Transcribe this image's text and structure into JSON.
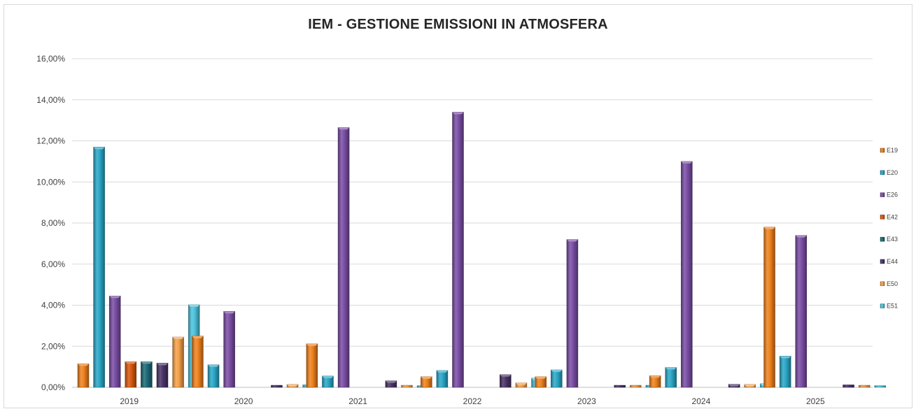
{
  "chart_data": {
    "type": "bar",
    "title": "IEM - GESTIONE EMISSIONI IN ATMOSFERA",
    "xlabel": "",
    "ylabel": "",
    "ylim": [
      0,
      16
    ],
    "y_ticks": [
      "0,00%",
      "2,00%",
      "4,00%",
      "6,00%",
      "8,00%",
      "10,00%",
      "12,00%",
      "14,00%",
      "16,00%"
    ],
    "y_tick_values": [
      0,
      2,
      4,
      6,
      8,
      10,
      12,
      14,
      16
    ],
    "grid": true,
    "legend_position": "right",
    "categories": [
      "2019",
      "2020",
      "2021",
      "2022",
      "2023",
      "2024",
      "2025"
    ],
    "series": [
      {
        "name": "E19",
        "color": "#f0821e",
        "values": [
          1.15,
          2.5,
          2.12,
          0.52,
          0.52,
          0.57,
          7.8
        ]
      },
      {
        "name": "E20",
        "color": "#2ba8c8",
        "values": [
          11.7,
          1.1,
          0.55,
          0.82,
          0.85,
          0.97,
          1.52
        ]
      },
      {
        "name": "E26",
        "color": "#7b4fa6",
        "values": [
          4.45,
          3.7,
          12.65,
          13.4,
          7.2,
          11.0,
          7.4
        ]
      },
      {
        "name": "E42",
        "color": "#d9580f",
        "values": [
          1.25,
          null,
          null,
          null,
          null,
          null,
          null
        ]
      },
      {
        "name": "E43",
        "color": "#1c6a78",
        "values": [
          1.25,
          null,
          null,
          null,
          null,
          null,
          null
        ]
      },
      {
        "name": "E44",
        "color": "#4a3468",
        "values": [
          1.18,
          0.1,
          0.32,
          0.62,
          0.1,
          0.15,
          0.12
        ]
      },
      {
        "name": "E50",
        "color": "#f6a14a",
        "values": [
          2.45,
          0.14,
          0.1,
          0.22,
          0.1,
          0.14,
          0.1
        ]
      },
      {
        "name": "E51",
        "color": "#4dc3dc",
        "values": [
          4.02,
          0.12,
          0.08,
          0.45,
          0.1,
          0.18,
          0.08
        ]
      }
    ]
  }
}
